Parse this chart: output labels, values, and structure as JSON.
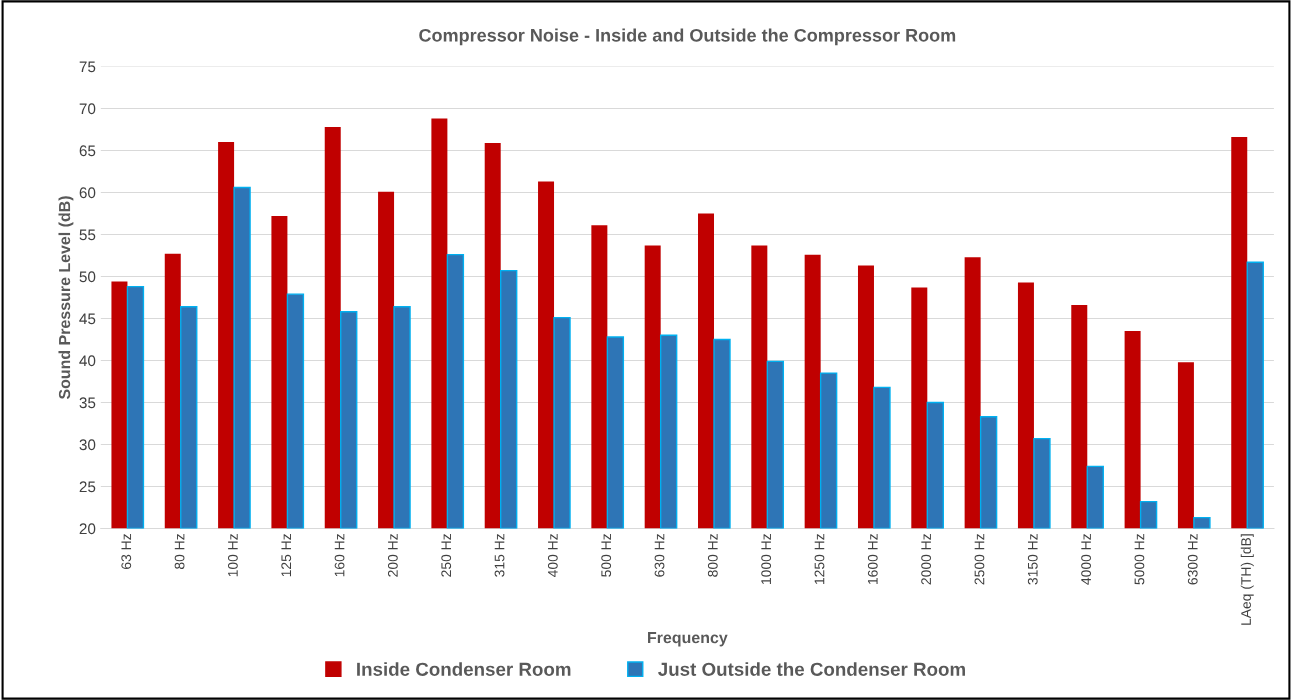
{
  "chart_data": {
    "type": "bar",
    "title": "Compressor Noise - Inside and Outside the Compressor Room",
    "xlabel": "Frequency",
    "ylabel": "Sound Pressure Level (dB)",
    "categories": [
      "63 Hz",
      "80 Hz",
      "100 Hz",
      "125 Hz",
      "160 Hz",
      "200 Hz",
      "250 Hz",
      "315 Hz",
      "400 Hz",
      "500 Hz",
      "630 Hz",
      "800 Hz",
      "1000 Hz",
      "1250 Hz",
      "1600 Hz",
      "2000 Hz",
      "2500 Hz",
      "3150 Hz",
      "4000 Hz",
      "5000 Hz",
      "6300 Hz",
      "LAeq (TH) [dB]"
    ],
    "series": [
      {
        "name": "Inside Condenser Room",
        "color": "#c00000",
        "values": [
          49.4,
          52.7,
          66.0,
          57.2,
          67.8,
          60.1,
          68.8,
          65.9,
          61.3,
          56.1,
          53.7,
          57.5,
          53.7,
          52.6,
          51.3,
          48.7,
          52.3,
          49.3,
          46.6,
          43.5,
          39.8,
          66.6
        ]
      },
      {
        "name": "Just Outside the Condenser Room",
        "color": "#2e75b6",
        "values": [
          48.8,
          46.4,
          60.6,
          47.9,
          45.8,
          46.4,
          52.6,
          50.7,
          45.1,
          42.8,
          43.0,
          42.5,
          39.9,
          38.5,
          36.8,
          35.0,
          33.3,
          30.7,
          27.4,
          23.2,
          21.3,
          51.7
        ]
      }
    ],
    "ylim": [
      20,
      75
    ],
    "yticks": [
      20,
      25,
      30,
      35,
      40,
      45,
      50,
      55,
      60,
      65,
      70,
      75
    ],
    "grid": "y",
    "legend": "bottom"
  }
}
